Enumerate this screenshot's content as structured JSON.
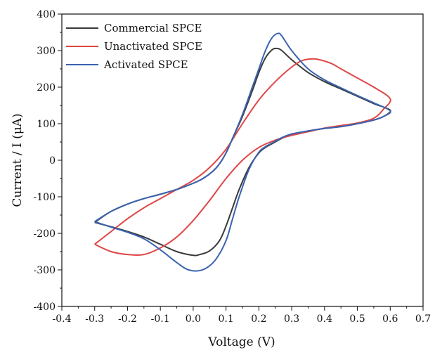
{
  "chart_data": {
    "type": "line",
    "title": "",
    "xlabel": "Voltage (V)",
    "ylabel": "Current / I (μA)",
    "xlim": [
      -0.4,
      0.7
    ],
    "ylim": [
      -400,
      400
    ],
    "xticks": [
      "-0.4",
      "-0.3",
      "-0.2",
      "-0.1",
      "0.0",
      "0.1",
      "0.2",
      "0.3",
      "0.4",
      "0.5",
      "0.6",
      "0.7"
    ],
    "yticks": [
      "400",
      "300",
      "200",
      "100",
      "0",
      "-100",
      "-200",
      "-300",
      "-400"
    ],
    "grid": false,
    "legend": "top-left",
    "series": [
      {
        "name": "Commercial SPCE",
        "color": "#3a3a3a",
        "points": [
          [
            -0.3,
            -170
          ],
          [
            -0.25,
            -140
          ],
          [
            -0.2,
            -120
          ],
          [
            -0.15,
            -105
          ],
          [
            -0.1,
            -93
          ],
          [
            -0.05,
            -80
          ],
          [
            0.0,
            -63
          ],
          [
            0.03,
            -50
          ],
          [
            0.06,
            -30
          ],
          [
            0.08,
            -10
          ],
          [
            0.1,
            20
          ],
          [
            0.12,
            60
          ],
          [
            0.15,
            120
          ],
          [
            0.18,
            190
          ],
          [
            0.2,
            240
          ],
          [
            0.22,
            280
          ],
          [
            0.24,
            302
          ],
          [
            0.255,
            306
          ],
          [
            0.27,
            300
          ],
          [
            0.3,
            275
          ],
          [
            0.35,
            240
          ],
          [
            0.4,
            215
          ],
          [
            0.45,
            195
          ],
          [
            0.5,
            175
          ],
          [
            0.55,
            155
          ],
          [
            0.6,
            137
          ],
          [
            0.58,
            120
          ],
          [
            0.55,
            110
          ],
          [
            0.5,
            100
          ],
          [
            0.45,
            92
          ],
          [
            0.4,
            87
          ],
          [
            0.35,
            80
          ],
          [
            0.3,
            70
          ],
          [
            0.27,
            60
          ],
          [
            0.25,
            50
          ],
          [
            0.22,
            35
          ],
          [
            0.2,
            20
          ],
          [
            0.17,
            -20
          ],
          [
            0.14,
            -80
          ],
          [
            0.12,
            -130
          ],
          [
            0.1,
            -180
          ],
          [
            0.08,
            -220
          ],
          [
            0.05,
            -248
          ],
          [
            0.02,
            -258
          ],
          [
            0.0,
            -260
          ],
          [
            -0.05,
            -250
          ],
          [
            -0.1,
            -230
          ],
          [
            -0.15,
            -210
          ],
          [
            -0.2,
            -195
          ],
          [
            -0.25,
            -182
          ],
          [
            -0.3,
            -170
          ]
        ]
      },
      {
        "name": "Unactivated SPCE",
        "color": "#e04646",
        "points": [
          [
            -0.3,
            -230
          ],
          [
            -0.25,
            -195
          ],
          [
            -0.2,
            -160
          ],
          [
            -0.15,
            -130
          ],
          [
            -0.1,
            -105
          ],
          [
            -0.05,
            -80
          ],
          [
            0.0,
            -55
          ],
          [
            0.05,
            -20
          ],
          [
            0.1,
            30
          ],
          [
            0.15,
            100
          ],
          [
            0.2,
            165
          ],
          [
            0.25,
            215
          ],
          [
            0.3,
            255
          ],
          [
            0.33,
            272
          ],
          [
            0.355,
            277
          ],
          [
            0.38,
            276
          ],
          [
            0.42,
            265
          ],
          [
            0.45,
            250
          ],
          [
            0.5,
            225
          ],
          [
            0.55,
            200
          ],
          [
            0.6,
            168
          ],
          [
            0.58,
            140
          ],
          [
            0.55,
            115
          ],
          [
            0.5,
            102
          ],
          [
            0.45,
            95
          ],
          [
            0.4,
            88
          ],
          [
            0.35,
            78
          ],
          [
            0.3,
            68
          ],
          [
            0.25,
            55
          ],
          [
            0.2,
            35
          ],
          [
            0.15,
            0
          ],
          [
            0.1,
            -50
          ],
          [
            0.05,
            -110
          ],
          [
            0.0,
            -165
          ],
          [
            -0.05,
            -210
          ],
          [
            -0.1,
            -240
          ],
          [
            -0.15,
            -258
          ],
          [
            -0.2,
            -258
          ],
          [
            -0.25,
            -250
          ],
          [
            -0.3,
            -230
          ]
        ]
      },
      {
        "name": "Activated SPCE",
        "color": "#3a63b0",
        "points": [
          [
            -0.3,
            -168
          ],
          [
            -0.25,
            -140
          ],
          [
            -0.2,
            -120
          ],
          [
            -0.15,
            -105
          ],
          [
            -0.1,
            -93
          ],
          [
            -0.05,
            -80
          ],
          [
            0.0,
            -63
          ],
          [
            0.03,
            -50
          ],
          [
            0.06,
            -30
          ],
          [
            0.08,
            -10
          ],
          [
            0.1,
            20
          ],
          [
            0.12,
            60
          ],
          [
            0.15,
            125
          ],
          [
            0.18,
            200
          ],
          [
            0.2,
            250
          ],
          [
            0.22,
            300
          ],
          [
            0.24,
            335
          ],
          [
            0.258,
            347
          ],
          [
            0.27,
            340
          ],
          [
            0.3,
            300
          ],
          [
            0.35,
            250
          ],
          [
            0.4,
            220
          ],
          [
            0.45,
            198
          ],
          [
            0.5,
            177
          ],
          [
            0.55,
            157
          ],
          [
            0.6,
            135
          ],
          [
            0.58,
            120
          ],
          [
            0.55,
            110
          ],
          [
            0.5,
            100
          ],
          [
            0.45,
            92
          ],
          [
            0.4,
            87
          ],
          [
            0.35,
            80
          ],
          [
            0.3,
            72
          ],
          [
            0.27,
            62
          ],
          [
            0.25,
            52
          ],
          [
            0.22,
            37
          ],
          [
            0.2,
            22
          ],
          [
            0.17,
            -25
          ],
          [
            0.14,
            -100
          ],
          [
            0.12,
            -160
          ],
          [
            0.1,
            -220
          ],
          [
            0.07,
            -270
          ],
          [
            0.04,
            -295
          ],
          [
            0.01,
            -303
          ],
          [
            -0.02,
            -298
          ],
          [
            -0.05,
            -280
          ],
          [
            -0.1,
            -245
          ],
          [
            -0.15,
            -215
          ],
          [
            -0.2,
            -197
          ],
          [
            -0.25,
            -183
          ],
          [
            -0.3,
            -168
          ]
        ]
      }
    ]
  }
}
